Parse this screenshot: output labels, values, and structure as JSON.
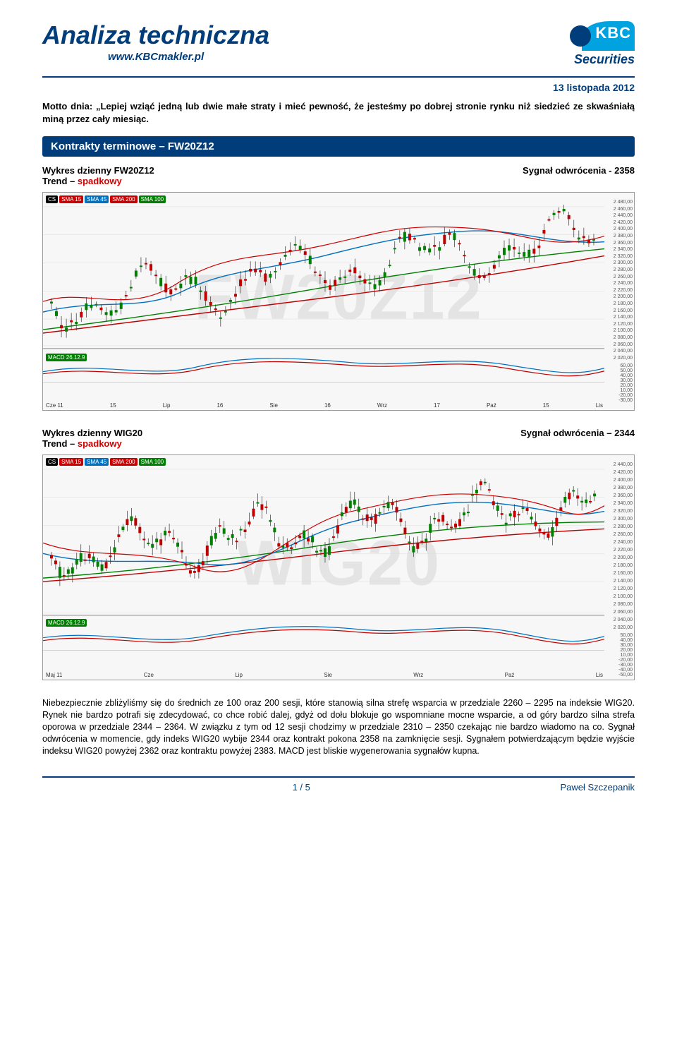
{
  "brand": {
    "title": "Analiza techniczna",
    "subtitle": "www.KBCmakler.pl",
    "logo_kbc": "KBC",
    "logo_securities": "Securities"
  },
  "date": "13 listopada 2012",
  "motto": "Motto dnia: „Lepiej wziąć jedną lub dwie małe straty i mieć pewność, że jesteśmy po dobrej stronie rynku niż siedzieć ze skwaśniałą miną przez cały miesiąc.",
  "section_title": "Kontrakty terminowe – FW20Z12",
  "chart1": {
    "watermark": "FW20Z12",
    "head_line1": "Wykres dzienny FW20Z12",
    "head_trend_label": "Trend – ",
    "head_trend_value": "spadkowy",
    "head_signal": "Sygnał odwrócenia - 2358",
    "badges": [
      "CS",
      "SMA 15",
      "SMA 45",
      "SMA 200",
      "SMA 100"
    ],
    "macd_label": "MACD 26.12.9",
    "yaxis_main": [
      "2 480,00",
      "2 460,00",
      "2 440,00",
      "2 420,00",
      "2 400,00",
      "2 380,00",
      "2 360,00",
      "2 340,00",
      "2 320,00",
      "2 300,00",
      "2 280,00",
      "2 260,00",
      "2 240,00",
      "2 220,00",
      "2 200,00",
      "2 180,00",
      "2 160,00",
      "2 140,00",
      "2 120,00",
      "2 100,00",
      "2 080,00",
      "2 060,00",
      "2 040,00",
      "2 020,00"
    ],
    "yaxis_macd_pos": [
      "60,00",
      "50,00",
      "40,00",
      "30,00",
      "20,00",
      "10,00"
    ],
    "yaxis_macd_neg": [
      "-20,00",
      "-30,00"
    ],
    "xaxis": [
      "Cze 11",
      "15",
      "Lip",
      "16",
      "Sie",
      "16",
      "Wrz",
      "17",
      "Paź",
      "15",
      "Lis"
    ],
    "colors": {
      "sma15": "#c00000",
      "sma45": "#0070c0",
      "sma100": "#008000",
      "sma200": "#c00000",
      "candle_up": "#008000",
      "candle_dn": "#c00000",
      "macd_line": "#0070c0",
      "macd_sig": "#c00000",
      "bg": "#f7f7f7"
    }
  },
  "chart2": {
    "watermark": "WIG20",
    "head_line1": "Wykres dzienny WIG20",
    "head_trend_label": "Trend – ",
    "head_trend_value": "spadkowy",
    "head_signal": "Sygnał odwrócenia – 2344",
    "badges": [
      "CS",
      "SMA 15",
      "SMA 45",
      "SMA 200",
      "SMA 100"
    ],
    "macd_label": "MACD 26.12.9",
    "yaxis_main": [
      "2 440,00",
      "2 420,00",
      "2 400,00",
      "2 380,00",
      "2 360,00",
      "2 340,00",
      "2 320,00",
      "2 300,00",
      "2 280,00",
      "2 260,00",
      "2 240,00",
      "2 220,00",
      "2 200,00",
      "2 180,00",
      "2 160,00",
      "2 140,00",
      "2 120,00",
      "2 100,00",
      "2 080,00",
      "2 060,00",
      "2 040,00",
      "2 020,00"
    ],
    "yaxis_macd_pos": [
      "50,00",
      "40,00",
      "30,00",
      "20,00",
      "10,00"
    ],
    "yaxis_macd_neg": [
      "-20,00",
      "-30,00",
      "-40,00",
      "-50,00"
    ],
    "xaxis": [
      "Maj 11",
      "Cze",
      "Lip",
      "Sie",
      "Wrz",
      "Paź",
      "Lis"
    ],
    "colors": {
      "sma15": "#c00000",
      "sma45": "#0070c0",
      "sma100": "#008000",
      "sma200": "#c00000",
      "bg": "#f7f7f7"
    }
  },
  "body_text": "Niebezpiecznie zbliżyliśmy się do średnich ze 100 oraz 200 sesji, które stanowią silna strefę wsparcia w przedziale 2260 – 2295 na indeksie WIG20. Rynek nie bardzo potrafi się zdecydować, co chce robić dalej, gdyż od dołu blokuje go wspomniane mocne wsparcie, a od góry bardzo silna strefa oporowa w przedziale 2344 – 2364. W związku z tym od 12 sesji chodzimy w przedziale 2310 – 2350 czekając nie bardzo wiadomo na co. Sygnał odwrócenia w momencie, gdy indeks WIG20 wybije 2344 oraz kontrakt pokona 2358 na zamknięcie sesji. Sygnałem potwierdzającym będzie wyjście indeksu WIG20 powyżej 2362 oraz kontraktu powyżej 2383. MACD jest bliskie wygenerowania sygnałów kupna.",
  "footer": {
    "page": "1 / 5",
    "author": "Paweł Szczepanik"
  }
}
